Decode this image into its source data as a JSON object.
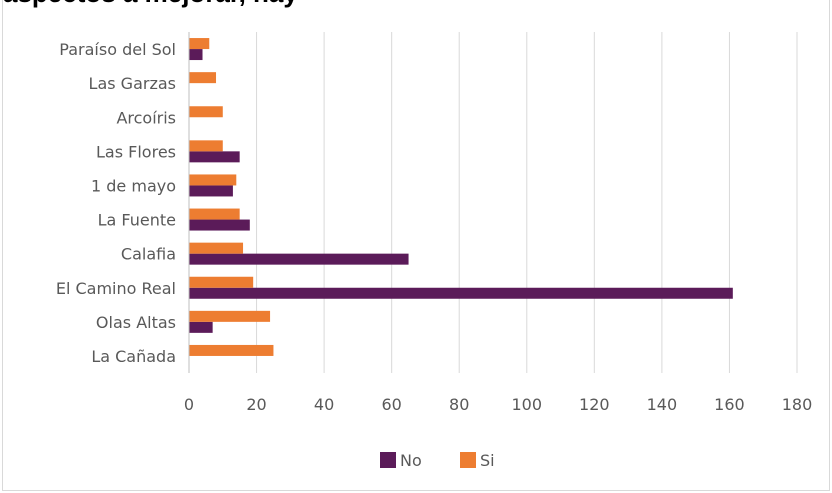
{
  "header": {
    "partial_title": "aspectos a mejorar, hay"
  },
  "chart_data": {
    "type": "bar",
    "orientation": "horizontal",
    "categories": [
      "Paraíso del Sol",
      "Las Garzas",
      "Arcoíris",
      "Las Flores",
      "1 de mayo",
      "La Fuente",
      "Calafia",
      "El Camino Real",
      "Olas Altas",
      "La Cañada"
    ],
    "series": [
      {
        "name": "No",
        "color": "#5b1b59",
        "values": [
          4,
          0,
          0,
          15,
          13,
          18,
          65,
          161,
          7,
          0
        ]
      },
      {
        "name": "Si",
        "color": "#ed7d31",
        "values": [
          6,
          8,
          10,
          10,
          14,
          15,
          16,
          19,
          24,
          25
        ]
      }
    ],
    "xlim": [
      0,
      180
    ],
    "xticks": [
      "0",
      "20",
      "40",
      "60",
      "80",
      "100",
      "120",
      "140",
      "160",
      "180"
    ],
    "grid": true,
    "legend_position": "bottom"
  }
}
